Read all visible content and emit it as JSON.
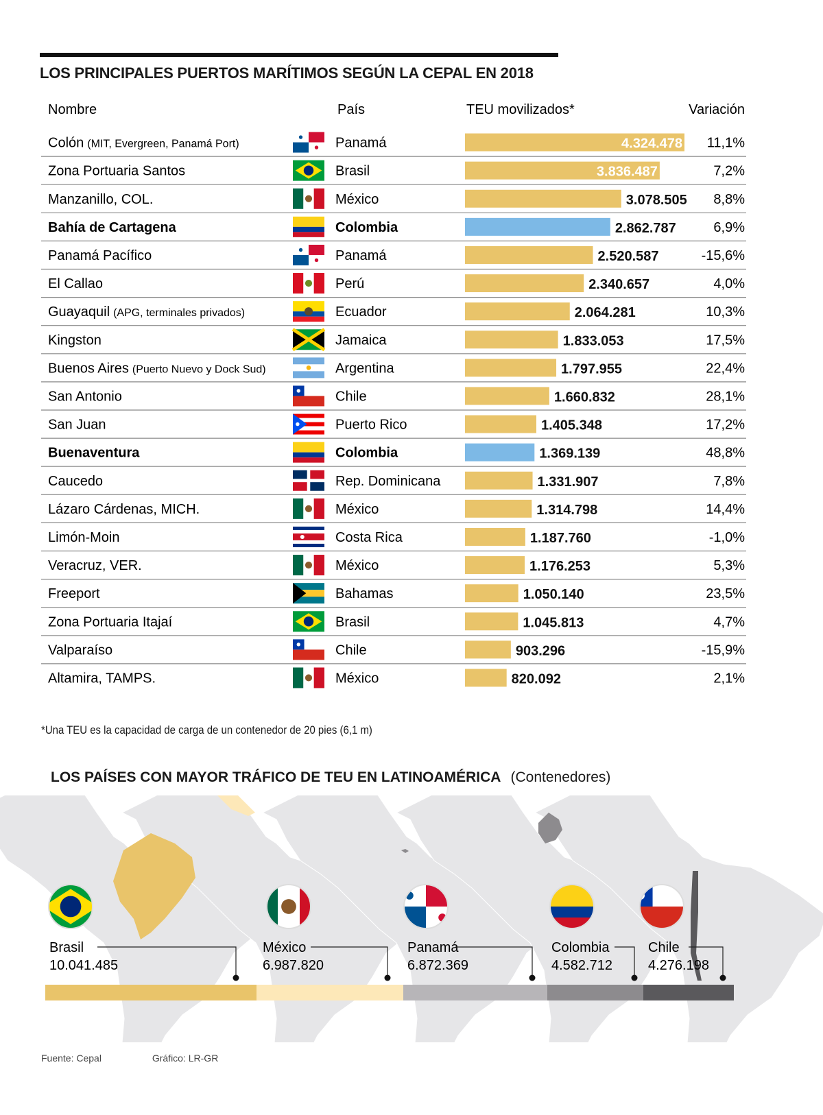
{
  "title": "LOS PRINCIPALES PUERTOS MARÍTIMOS SEGÚN LA CEPAL EN 2018",
  "headers": {
    "nombre": "Nombre",
    "pais": "País",
    "teu": "TEU movilizados*",
    "variacion": "Variación"
  },
  "colors": {
    "bar_default": "#e9c46a",
    "bar_highlight": "#7db9e6",
    "divider": "#888888"
  },
  "chart_data": {
    "type": "bar",
    "orientation": "horizontal",
    "categories": [
      "Colón",
      "Zona Portuaria Santos",
      "Manzanillo, COL.",
      "Bahía de Cartagena",
      "Panamá Pacífico",
      "El Callao",
      "Guayaquil",
      "Kingston",
      "Buenos Aires",
      "San Antonio",
      "San Juan",
      "Buenaventura",
      "Caucedo",
      "Lázaro Cárdenas, MICH.",
      "Limón-Moin",
      "Veracruz, VER.",
      "Freeport",
      "Zona Portuaria Itajaí",
      "Valparaíso",
      "Altamira, TAMPS."
    ],
    "values": [
      4324478,
      3836487,
      3078505,
      2862787,
      2520587,
      2340657,
      2064281,
      1833053,
      1797955,
      1660832,
      1405348,
      1369139,
      1331907,
      1314798,
      1187760,
      1176253,
      1050140,
      1045813,
      903296,
      820092
    ],
    "ylabel": "TEU movilizados*"
  },
  "rows": [
    {
      "name": "Colón",
      "note": "(MIT, Evergreen, Panamá Port)",
      "flag": "panama",
      "country": "Panamá",
      "teu": "4.324.478",
      "var": "11,1%",
      "highlight": false,
      "bold": false
    },
    {
      "name": "Zona Portuaria Santos",
      "note": "",
      "flag": "brazil",
      "country": "Brasil",
      "teu": "3.836.487",
      "var": "7,2%",
      "highlight": false,
      "bold": false
    },
    {
      "name": "Manzanillo, COL.",
      "note": "",
      "flag": "mexico",
      "country": "México",
      "teu": "3.078.505",
      "var": "8,8%",
      "highlight": false,
      "bold": false
    },
    {
      "name": "Bahía de Cartagena",
      "note": "",
      "flag": "colombia",
      "country": "Colombia",
      "teu": "2.862.787",
      "var": "6,9%",
      "highlight": true,
      "bold": true
    },
    {
      "name": "Panamá Pacífico",
      "note": "",
      "flag": "panama",
      "country": "Panamá",
      "teu": "2.520.587",
      "var": "-15,6%",
      "highlight": false,
      "bold": false
    },
    {
      "name": "El Callao",
      "note": "",
      "flag": "peru",
      "country": "Perú",
      "teu": "2.340.657",
      "var": "4,0%",
      "highlight": false,
      "bold": false
    },
    {
      "name": "Guayaquil",
      "note": "(APG, terminales privados)",
      "flag": "ecuador",
      "country": "Ecuador",
      "teu": "2.064.281",
      "var": "10,3%",
      "highlight": false,
      "bold": false
    },
    {
      "name": "Kingston",
      "note": "",
      "flag": "jamaica",
      "country": "Jamaica",
      "teu": "1.833.053",
      "var": "17,5%",
      "highlight": false,
      "bold": false
    },
    {
      "name": "Buenos Aires",
      "note": "(Puerto Nuevo y Dock Sud)",
      "flag": "argentina",
      "country": "Argentina",
      "teu": "1.797.955",
      "var": "22,4%",
      "highlight": false,
      "bold": false
    },
    {
      "name": "San Antonio",
      "note": "",
      "flag": "chile",
      "country": "Chile",
      "teu": "1.660.832",
      "var": "28,1%",
      "highlight": false,
      "bold": false
    },
    {
      "name": "San Juan",
      "note": "",
      "flag": "puertorico",
      "country": "Puerto Rico",
      "teu": "1.405.348",
      "var": "17,2%",
      "highlight": false,
      "bold": false
    },
    {
      "name": "Buenaventura",
      "note": "",
      "flag": "colombia",
      "country": "Colombia",
      "teu": "1.369.139",
      "var": "48,8%",
      "highlight": true,
      "bold": true
    },
    {
      "name": "Caucedo",
      "note": "",
      "flag": "dominican",
      "country": "Rep. Dominicana",
      "teu": "1.331.907",
      "var": "7,8%",
      "highlight": false,
      "bold": false
    },
    {
      "name": "Lázaro Cárdenas, MICH.",
      "note": "",
      "flag": "mexico",
      "country": "México",
      "teu": "1.314.798",
      "var": "14,4%",
      "highlight": false,
      "bold": false
    },
    {
      "name": "Limón-Moin",
      "note": "",
      "flag": "costarica",
      "country": "Costa Rica",
      "teu": "1.187.760",
      "var": "-1,0%",
      "highlight": false,
      "bold": false
    },
    {
      "name": "Veracruz, VER.",
      "note": "",
      "flag": "mexico",
      "country": "México",
      "teu": "1.176.253",
      "var": "5,3%",
      "highlight": false,
      "bold": false
    },
    {
      "name": "Freeport",
      "note": "",
      "flag": "bahamas",
      "country": "Bahamas",
      "teu": "1.050.140",
      "var": "23,5%",
      "highlight": false,
      "bold": false
    },
    {
      "name": "Zona Portuaria Itajaí",
      "note": "",
      "flag": "brazil",
      "country": "Brasil",
      "teu": "1.045.813",
      "var": "4,7%",
      "highlight": false,
      "bold": false
    },
    {
      "name": "Valparaíso",
      "note": "",
      "flag": "chile",
      "country": "Chile",
      "teu": "903.296",
      "var": "-15,9%",
      "highlight": false,
      "bold": false
    },
    {
      "name": "Altamira, TAMPS.",
      "note": "",
      "flag": "mexico",
      "country": "México",
      "teu": "820.092",
      "var": "2,1%",
      "highlight": false,
      "bold": false
    }
  ],
  "footnote": "*Una TEU es la capacidad de carga de un contenedor de 20 pies (6,1 m)",
  "section2": {
    "title": "LOS PAÍSES CON MAYOR TRÁFICO DE TEU EN LATINOAMÉRICA",
    "subtitle": "(Contenedores)"
  },
  "countries": [
    {
      "name": "Brasil",
      "value": "10.041.485",
      "flag": "brazil",
      "color": "#e9c46a"
    },
    {
      "name": "México",
      "value": "6.987.820",
      "flag": "mexico",
      "color": "#fde8b8"
    },
    {
      "name": "Panamá",
      "value": "6.872.369",
      "flag": "panama",
      "color": "#b7b5b8"
    },
    {
      "name": "Colombia",
      "value": "4.582.712",
      "flag": "colombia",
      "color": "#8d8b8e"
    },
    {
      "name": "Chile",
      "value": "4.276.198",
      "flag": "chile",
      "color": "#5a595c"
    }
  ],
  "footer": {
    "source": "Fuente: Cepal",
    "credit": "Gráfico: LR-GR"
  }
}
